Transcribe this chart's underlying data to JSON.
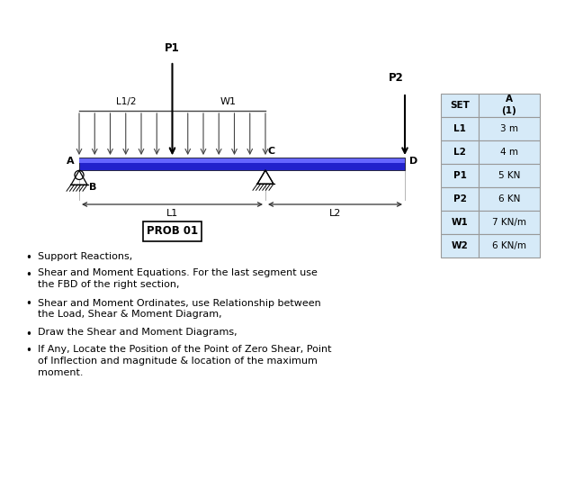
{
  "bg_color": "#ffffff",
  "beam_color": "#2222cc",
  "beam_highlight": "#6666ff",
  "table_bg": "#d6eaf8",
  "table_border": "#999999",
  "table_rows": [
    [
      "L1",
      "3 m"
    ],
    [
      "L2",
      "4 m"
    ],
    [
      "P1",
      "5 KN"
    ],
    [
      "P2",
      "6 KN"
    ],
    [
      "W1",
      "7 KN/m"
    ],
    [
      "W2",
      "6 KN/m"
    ]
  ],
  "bullet_points": [
    "Support Reactions,",
    "Shear and Moment Equations. For the last segment use\nthe FBD of the right section,",
    "Shear and Moment Ordinates, use Relationship between\nthe Load, Shear & Moment Diagram,",
    "Draw the Shear and Moment Diagrams,",
    "If Any, Locate the Position of the Point of Zero Shear, Point\nof Inflection and magnitude & location of the maximum\nmoment."
  ],
  "label_P1": "P1",
  "label_P2": "P2",
  "label_W1": "W1",
  "label_L1half": "L1/2",
  "label_L1": "L1",
  "label_L2": "L2",
  "label_A": "A",
  "label_B": "B",
  "label_C": "C",
  "label_D": "D",
  "prob_label": "PROB 01",
  "text_color": "#000000"
}
